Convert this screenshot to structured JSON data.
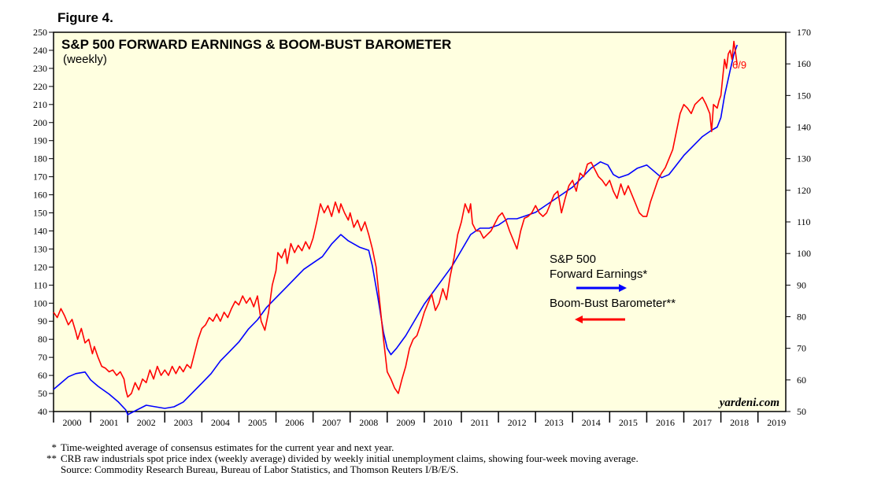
{
  "figure_label": "Figure 4.",
  "watermark": "yardeni.com",
  "colors": {
    "earnings": "#0000ff",
    "barometer": "#ff0000",
    "plot_bg": "#ffffe0",
    "frame": "#000000"
  },
  "footnotes": [
    {
      "mark": "*",
      "text": "Time-weighted average of consensus estimates for the current year and next year."
    },
    {
      "mark": "**",
      "text": "CRB raw industrials spot price index (weekly average) divided by weekly initial unemployment claims, showing four-week moving average."
    },
    {
      "mark": "",
      "text": "Source: Commodity Research Bureau, Bureau of Labor Statistics, and Thomson Reuters I/B/E/S."
    }
  ],
  "chart_data": {
    "type": "line",
    "title": "S&P 500 FORWARD EARNINGS & BOOM-BUST BAROMETER",
    "subtitle": "(weekly)",
    "end_annotation": "6/9",
    "x_range": [
      2000.0,
      2019.75
    ],
    "x_tick_labels": [
      "2000",
      "2001",
      "2002",
      "2003",
      "2004",
      "2005",
      "2006",
      "2007",
      "2008",
      "2009",
      "2010",
      "2011",
      "2012",
      "2013",
      "2014",
      "2015",
      "2016",
      "2017",
      "2018",
      "2019"
    ],
    "y_left": {
      "range": [
        40,
        250
      ],
      "ticks": [
        40,
        50,
        60,
        70,
        80,
        90,
        100,
        110,
        120,
        130,
        140,
        150,
        160,
        170,
        180,
        190,
        200,
        210,
        220,
        230,
        240,
        250
      ]
    },
    "y_right": {
      "range": [
        50,
        170
      ],
      "ticks": [
        50,
        60,
        70,
        80,
        90,
        100,
        110,
        120,
        130,
        140,
        150,
        160,
        170
      ]
    },
    "legend": [
      {
        "label_lines": [
          "S&P 500",
          "Forward Earnings*"
        ],
        "arrow": "right",
        "axis": "right",
        "color_key": "earnings"
      },
      {
        "label_lines": [
          "Boom-Bust Barometer**"
        ],
        "arrow": "left",
        "axis": "left",
        "color_key": "barometer"
      }
    ],
    "series": [
      {
        "name": "S&P 500 Forward Earnings*",
        "axis": "right",
        "points": [
          [
            2000.0,
            57
          ],
          [
            2000.2,
            59
          ],
          [
            2000.4,
            61
          ],
          [
            2000.6,
            62
          ],
          [
            2000.85,
            62.5
          ],
          [
            2001.0,
            60
          ],
          [
            2001.2,
            58
          ],
          [
            2001.5,
            55.5
          ],
          [
            2001.75,
            53
          ],
          [
            2001.95,
            50.5
          ],
          [
            2002.0,
            49
          ],
          [
            2002.25,
            50.5
          ],
          [
            2002.5,
            52
          ],
          [
            2002.75,
            51.5
          ],
          [
            2003.0,
            51
          ],
          [
            2003.25,
            51.5
          ],
          [
            2003.5,
            53
          ],
          [
            2003.75,
            56
          ],
          [
            2004.0,
            59
          ],
          [
            2004.25,
            62
          ],
          [
            2004.5,
            66
          ],
          [
            2004.75,
            69
          ],
          [
            2005.0,
            72
          ],
          [
            2005.25,
            76
          ],
          [
            2005.5,
            79
          ],
          [
            2005.75,
            83
          ],
          [
            2006.0,
            86
          ],
          [
            2006.25,
            89
          ],
          [
            2006.5,
            92
          ],
          [
            2006.75,
            95
          ],
          [
            2007.0,
            97
          ],
          [
            2007.25,
            99
          ],
          [
            2007.5,
            103
          ],
          [
            2007.75,
            106
          ],
          [
            2007.95,
            104
          ],
          [
            2008.25,
            102
          ],
          [
            2008.5,
            101
          ],
          [
            2008.6,
            96
          ],
          [
            2008.75,
            86
          ],
          [
            2008.9,
            75
          ],
          [
            2009.0,
            70
          ],
          [
            2009.1,
            68
          ],
          [
            2009.25,
            70
          ],
          [
            2009.5,
            74
          ],
          [
            2009.75,
            79
          ],
          [
            2010.0,
            84
          ],
          [
            2010.25,
            88
          ],
          [
            2010.5,
            92
          ],
          [
            2010.75,
            96
          ],
          [
            2011.0,
            101
          ],
          [
            2011.25,
            106
          ],
          [
            2011.5,
            108
          ],
          [
            2011.75,
            108
          ],
          [
            2012.0,
            109
          ],
          [
            2012.25,
            111
          ],
          [
            2012.5,
            111
          ],
          [
            2012.75,
            112
          ],
          [
            2013.0,
            113
          ],
          [
            2013.25,
            115
          ],
          [
            2013.5,
            117
          ],
          [
            2013.75,
            119
          ],
          [
            2014.0,
            121
          ],
          [
            2014.25,
            124
          ],
          [
            2014.5,
            127
          ],
          [
            2014.75,
            129
          ],
          [
            2014.95,
            128
          ],
          [
            2015.1,
            125
          ],
          [
            2015.25,
            124
          ],
          [
            2015.5,
            125
          ],
          [
            2015.75,
            127
          ],
          [
            2016.0,
            128
          ],
          [
            2016.2,
            126
          ],
          [
            2016.4,
            124
          ],
          [
            2016.6,
            125
          ],
          [
            2016.8,
            128
          ],
          [
            2017.0,
            131
          ],
          [
            2017.25,
            134
          ],
          [
            2017.5,
            137
          ],
          [
            2017.75,
            139
          ],
          [
            2017.9,
            140
          ],
          [
            2018.0,
            143
          ],
          [
            2018.1,
            150
          ],
          [
            2018.25,
            158
          ],
          [
            2018.35,
            163
          ],
          [
            2018.44,
            166
          ]
        ]
      },
      {
        "name": "Boom-Bust Barometer**",
        "axis": "left",
        "points": [
          [
            2000.0,
            95
          ],
          [
            2000.1,
            92
          ],
          [
            2000.2,
            97
          ],
          [
            2000.3,
            93
          ],
          [
            2000.4,
            88
          ],
          [
            2000.5,
            91
          ],
          [
            2000.6,
            84
          ],
          [
            2000.65,
            80
          ],
          [
            2000.75,
            86
          ],
          [
            2000.85,
            78
          ],
          [
            2000.95,
            80
          ],
          [
            2001.05,
            72
          ],
          [
            2001.1,
            76
          ],
          [
            2001.2,
            70
          ],
          [
            2001.3,
            65
          ],
          [
            2001.4,
            64
          ],
          [
            2001.5,
            62
          ],
          [
            2001.6,
            63
          ],
          [
            2001.7,
            60
          ],
          [
            2001.8,
            62
          ],
          [
            2001.9,
            58
          ],
          [
            2001.95,
            52
          ],
          [
            2002.0,
            48
          ],
          [
            2002.1,
            50
          ],
          [
            2002.2,
            56
          ],
          [
            2002.3,
            52
          ],
          [
            2002.4,
            58
          ],
          [
            2002.5,
            56
          ],
          [
            2002.6,
            63
          ],
          [
            2002.7,
            58
          ],
          [
            2002.8,
            65
          ],
          [
            2002.9,
            60
          ],
          [
            2003.0,
            63
          ],
          [
            2003.1,
            60
          ],
          [
            2003.2,
            65
          ],
          [
            2003.3,
            61
          ],
          [
            2003.4,
            65
          ],
          [
            2003.5,
            62
          ],
          [
            2003.6,
            66
          ],
          [
            2003.7,
            64
          ],
          [
            2003.8,
            72
          ],
          [
            2003.9,
            80
          ],
          [
            2004.0,
            86
          ],
          [
            2004.1,
            88
          ],
          [
            2004.2,
            92
          ],
          [
            2004.3,
            90
          ],
          [
            2004.4,
            94
          ],
          [
            2004.5,
            90
          ],
          [
            2004.6,
            95
          ],
          [
            2004.7,
            92
          ],
          [
            2004.8,
            97
          ],
          [
            2004.9,
            101
          ],
          [
            2005.0,
            99
          ],
          [
            2005.1,
            104
          ],
          [
            2005.2,
            100
          ],
          [
            2005.3,
            103
          ],
          [
            2005.4,
            98
          ],
          [
            2005.5,
            104
          ],
          [
            2005.6,
            90
          ],
          [
            2005.7,
            85
          ],
          [
            2005.8,
            95
          ],
          [
            2005.9,
            110
          ],
          [
            2006.0,
            118
          ],
          [
            2006.05,
            128
          ],
          [
            2006.15,
            125
          ],
          [
            2006.25,
            130
          ],
          [
            2006.3,
            122
          ],
          [
            2006.4,
            133
          ],
          [
            2006.5,
            128
          ],
          [
            2006.6,
            132
          ],
          [
            2006.7,
            129
          ],
          [
            2006.8,
            134
          ],
          [
            2006.9,
            130
          ],
          [
            2007.0,
            136
          ],
          [
            2007.1,
            145
          ],
          [
            2007.2,
            155
          ],
          [
            2007.3,
            150
          ],
          [
            2007.4,
            154
          ],
          [
            2007.5,
            148
          ],
          [
            2007.6,
            156
          ],
          [
            2007.7,
            150
          ],
          [
            2007.75,
            155
          ],
          [
            2007.85,
            150
          ],
          [
            2007.95,
            146
          ],
          [
            2008.0,
            150
          ],
          [
            2008.1,
            142
          ],
          [
            2008.2,
            146
          ],
          [
            2008.3,
            140
          ],
          [
            2008.4,
            145
          ],
          [
            2008.5,
            138
          ],
          [
            2008.6,
            130
          ],
          [
            2008.7,
            120
          ],
          [
            2008.8,
            100
          ],
          [
            2008.9,
            80
          ],
          [
            2009.0,
            62
          ],
          [
            2009.1,
            58
          ],
          [
            2009.2,
            53
          ],
          [
            2009.3,
            50
          ],
          [
            2009.4,
            58
          ],
          [
            2009.5,
            65
          ],
          [
            2009.6,
            75
          ],
          [
            2009.7,
            80
          ],
          [
            2009.8,
            82
          ],
          [
            2009.9,
            88
          ],
          [
            2010.0,
            95
          ],
          [
            2010.1,
            100
          ],
          [
            2010.2,
            105
          ],
          [
            2010.3,
            96
          ],
          [
            2010.4,
            100
          ],
          [
            2010.5,
            108
          ],
          [
            2010.6,
            102
          ],
          [
            2010.7,
            115
          ],
          [
            2010.8,
            125
          ],
          [
            2010.9,
            138
          ],
          [
            2011.0,
            145
          ],
          [
            2011.1,
            155
          ],
          [
            2011.2,
            150
          ],
          [
            2011.25,
            155
          ],
          [
            2011.3,
            144
          ],
          [
            2011.4,
            140
          ],
          [
            2011.5,
            140
          ],
          [
            2011.6,
            136
          ],
          [
            2011.7,
            138
          ],
          [
            2011.8,
            140
          ],
          [
            2011.9,
            144
          ],
          [
            2012.0,
            148
          ],
          [
            2012.1,
            150
          ],
          [
            2012.2,
            146
          ],
          [
            2012.3,
            140
          ],
          [
            2012.4,
            135
          ],
          [
            2012.5,
            130
          ],
          [
            2012.6,
            140
          ],
          [
            2012.7,
            147
          ],
          [
            2012.8,
            148
          ],
          [
            2012.9,
            150
          ],
          [
            2013.0,
            154
          ],
          [
            2013.1,
            150
          ],
          [
            2013.2,
            148
          ],
          [
            2013.3,
            150
          ],
          [
            2013.4,
            155
          ],
          [
            2013.5,
            160
          ],
          [
            2013.6,
            162
          ],
          [
            2013.7,
            150
          ],
          [
            2013.8,
            158
          ],
          [
            2013.9,
            165
          ],
          [
            2014.0,
            168
          ],
          [
            2014.1,
            162
          ],
          [
            2014.2,
            172
          ],
          [
            2014.3,
            170
          ],
          [
            2014.4,
            177
          ],
          [
            2014.5,
            178
          ],
          [
            2014.6,
            174
          ],
          [
            2014.7,
            170
          ],
          [
            2014.8,
            168
          ],
          [
            2014.9,
            165
          ],
          [
            2015.0,
            168
          ],
          [
            2015.1,
            162
          ],
          [
            2015.2,
            158
          ],
          [
            2015.3,
            166
          ],
          [
            2015.4,
            160
          ],
          [
            2015.5,
            165
          ],
          [
            2015.6,
            160
          ],
          [
            2015.7,
            155
          ],
          [
            2015.8,
            150
          ],
          [
            2015.9,
            148
          ],
          [
            2016.0,
            148
          ],
          [
            2016.1,
            156
          ],
          [
            2016.2,
            162
          ],
          [
            2016.3,
            168
          ],
          [
            2016.4,
            172
          ],
          [
            2016.5,
            175
          ],
          [
            2016.6,
            180
          ],
          [
            2016.7,
            185
          ],
          [
            2016.8,
            195
          ],
          [
            2016.9,
            205
          ],
          [
            2017.0,
            210
          ],
          [
            2017.1,
            208
          ],
          [
            2017.2,
            205
          ],
          [
            2017.3,
            210
          ],
          [
            2017.4,
            212
          ],
          [
            2017.5,
            214
          ],
          [
            2017.6,
            210
          ],
          [
            2017.7,
            205
          ],
          [
            2017.75,
            195
          ],
          [
            2017.8,
            210
          ],
          [
            2017.9,
            208
          ],
          [
            2017.95,
            212
          ],
          [
            2018.0,
            215
          ],
          [
            2018.05,
            225
          ],
          [
            2018.1,
            235
          ],
          [
            2018.15,
            230
          ],
          [
            2018.2,
            238
          ],
          [
            2018.25,
            240
          ],
          [
            2018.3,
            235
          ],
          [
            2018.35,
            245
          ],
          [
            2018.4,
            238
          ],
          [
            2018.44,
            232
          ]
        ]
      }
    ]
  }
}
